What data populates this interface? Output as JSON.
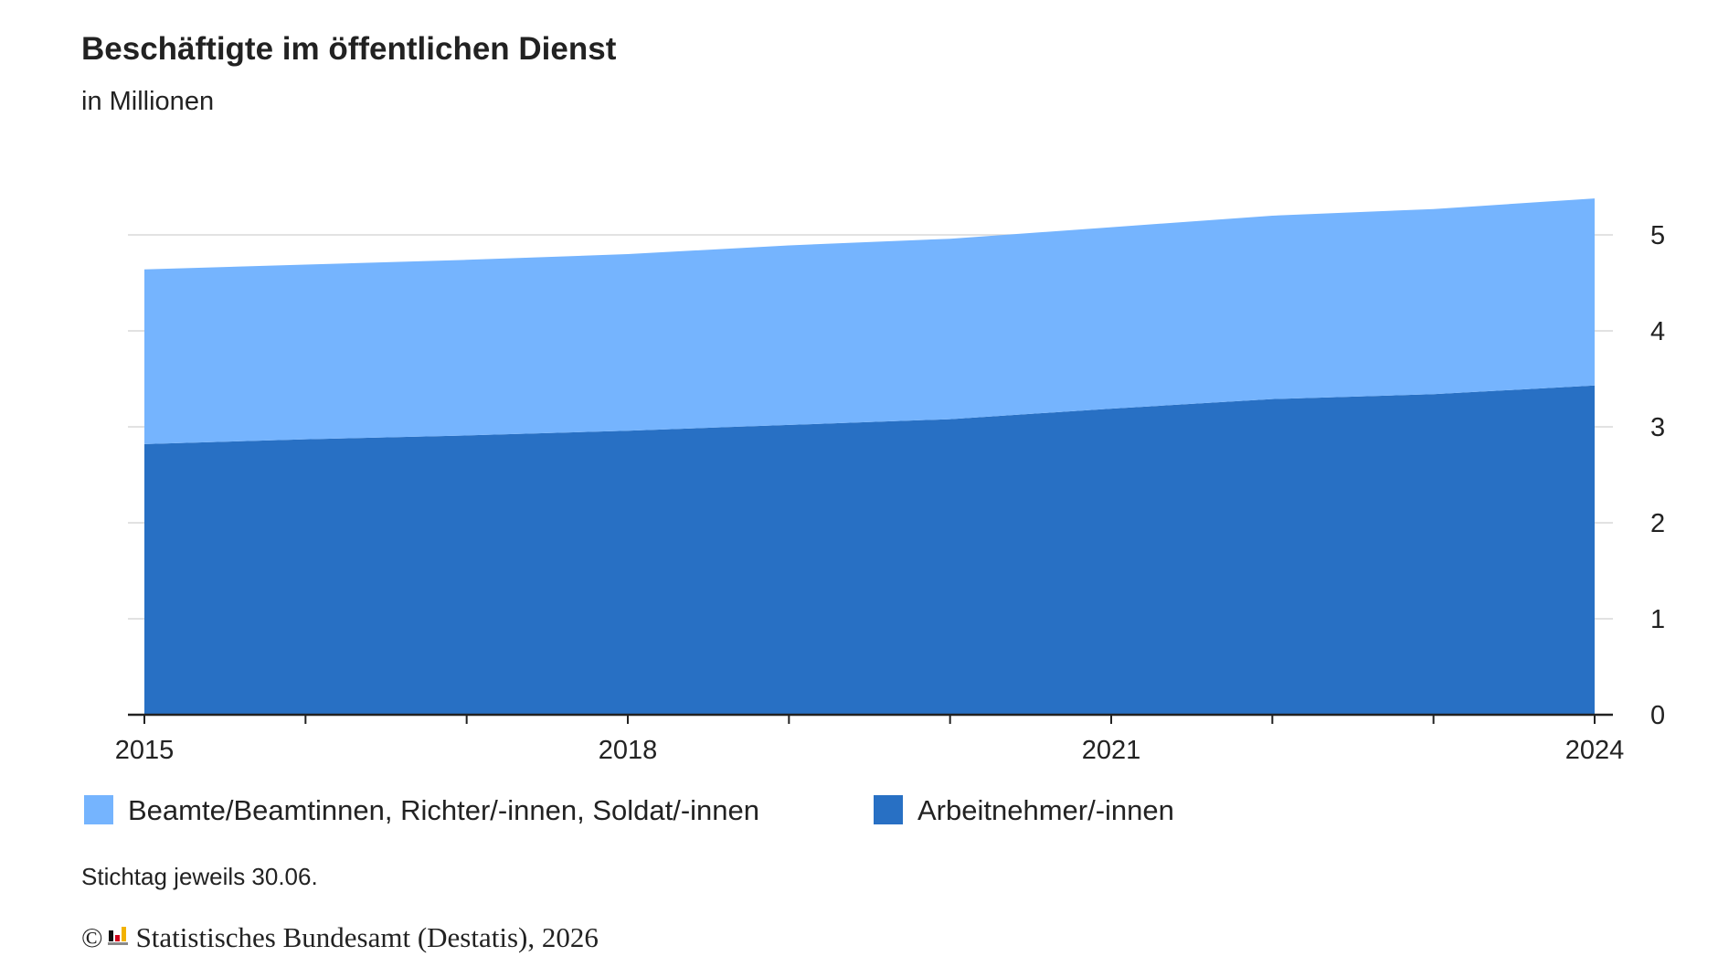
{
  "header": {
    "title": "Beschäftigte im öffentlichen Dienst",
    "subtitle": "in Millionen"
  },
  "footer": {
    "note": "Stichtag jeweils 30.06.",
    "copyright_symbol": "©",
    "source": "Statistisches Bundesamt (Destatis), 2026",
    "logo_icon": "destatis-logo-icon"
  },
  "colors": {
    "series_light": "#75b4fe",
    "series_dark": "#2870c4",
    "grid": "#d9d9d9",
    "axis": "#222222"
  },
  "chart_data": {
    "type": "area",
    "stacked": true,
    "title": "Beschäftigte im öffentlichen Dienst",
    "subtitle": "in Millionen",
    "x": [
      2015,
      2016,
      2017,
      2018,
      2019,
      2020,
      2021,
      2022,
      2023,
      2024
    ],
    "x_tick_labels": [
      "2015",
      "2018",
      "2021",
      "2024"
    ],
    "y_tick_labels": [
      "0",
      "1",
      "2",
      "3",
      "4",
      "5"
    ],
    "ylim": [
      0,
      5.5
    ],
    "y_axis_side": "right",
    "grid": true,
    "legend_position": "bottom-left",
    "series": [
      {
        "name": "Arbeitnehmer/-innen",
        "color": "#2870c4",
        "values": [
          2.82,
          2.87,
          2.91,
          2.96,
          3.02,
          3.08,
          3.19,
          3.29,
          3.34,
          3.43
        ]
      },
      {
        "name": "Beamte/Beamtinnen, Richter/-innen, Soldat/-innen",
        "color": "#75b4fe",
        "values": [
          1.82,
          1.82,
          1.83,
          1.84,
          1.87,
          1.88,
          1.89,
          1.91,
          1.93,
          1.95
        ]
      }
    ],
    "legend": [
      {
        "label": "Beamte/Beamtinnen, Richter/-innen, Soldat/-innen",
        "color": "#75b4fe"
      },
      {
        "label": "Arbeitnehmer/-innen",
        "color": "#2870c4"
      }
    ],
    "footnote": "Stichtag jeweils 30.06."
  }
}
